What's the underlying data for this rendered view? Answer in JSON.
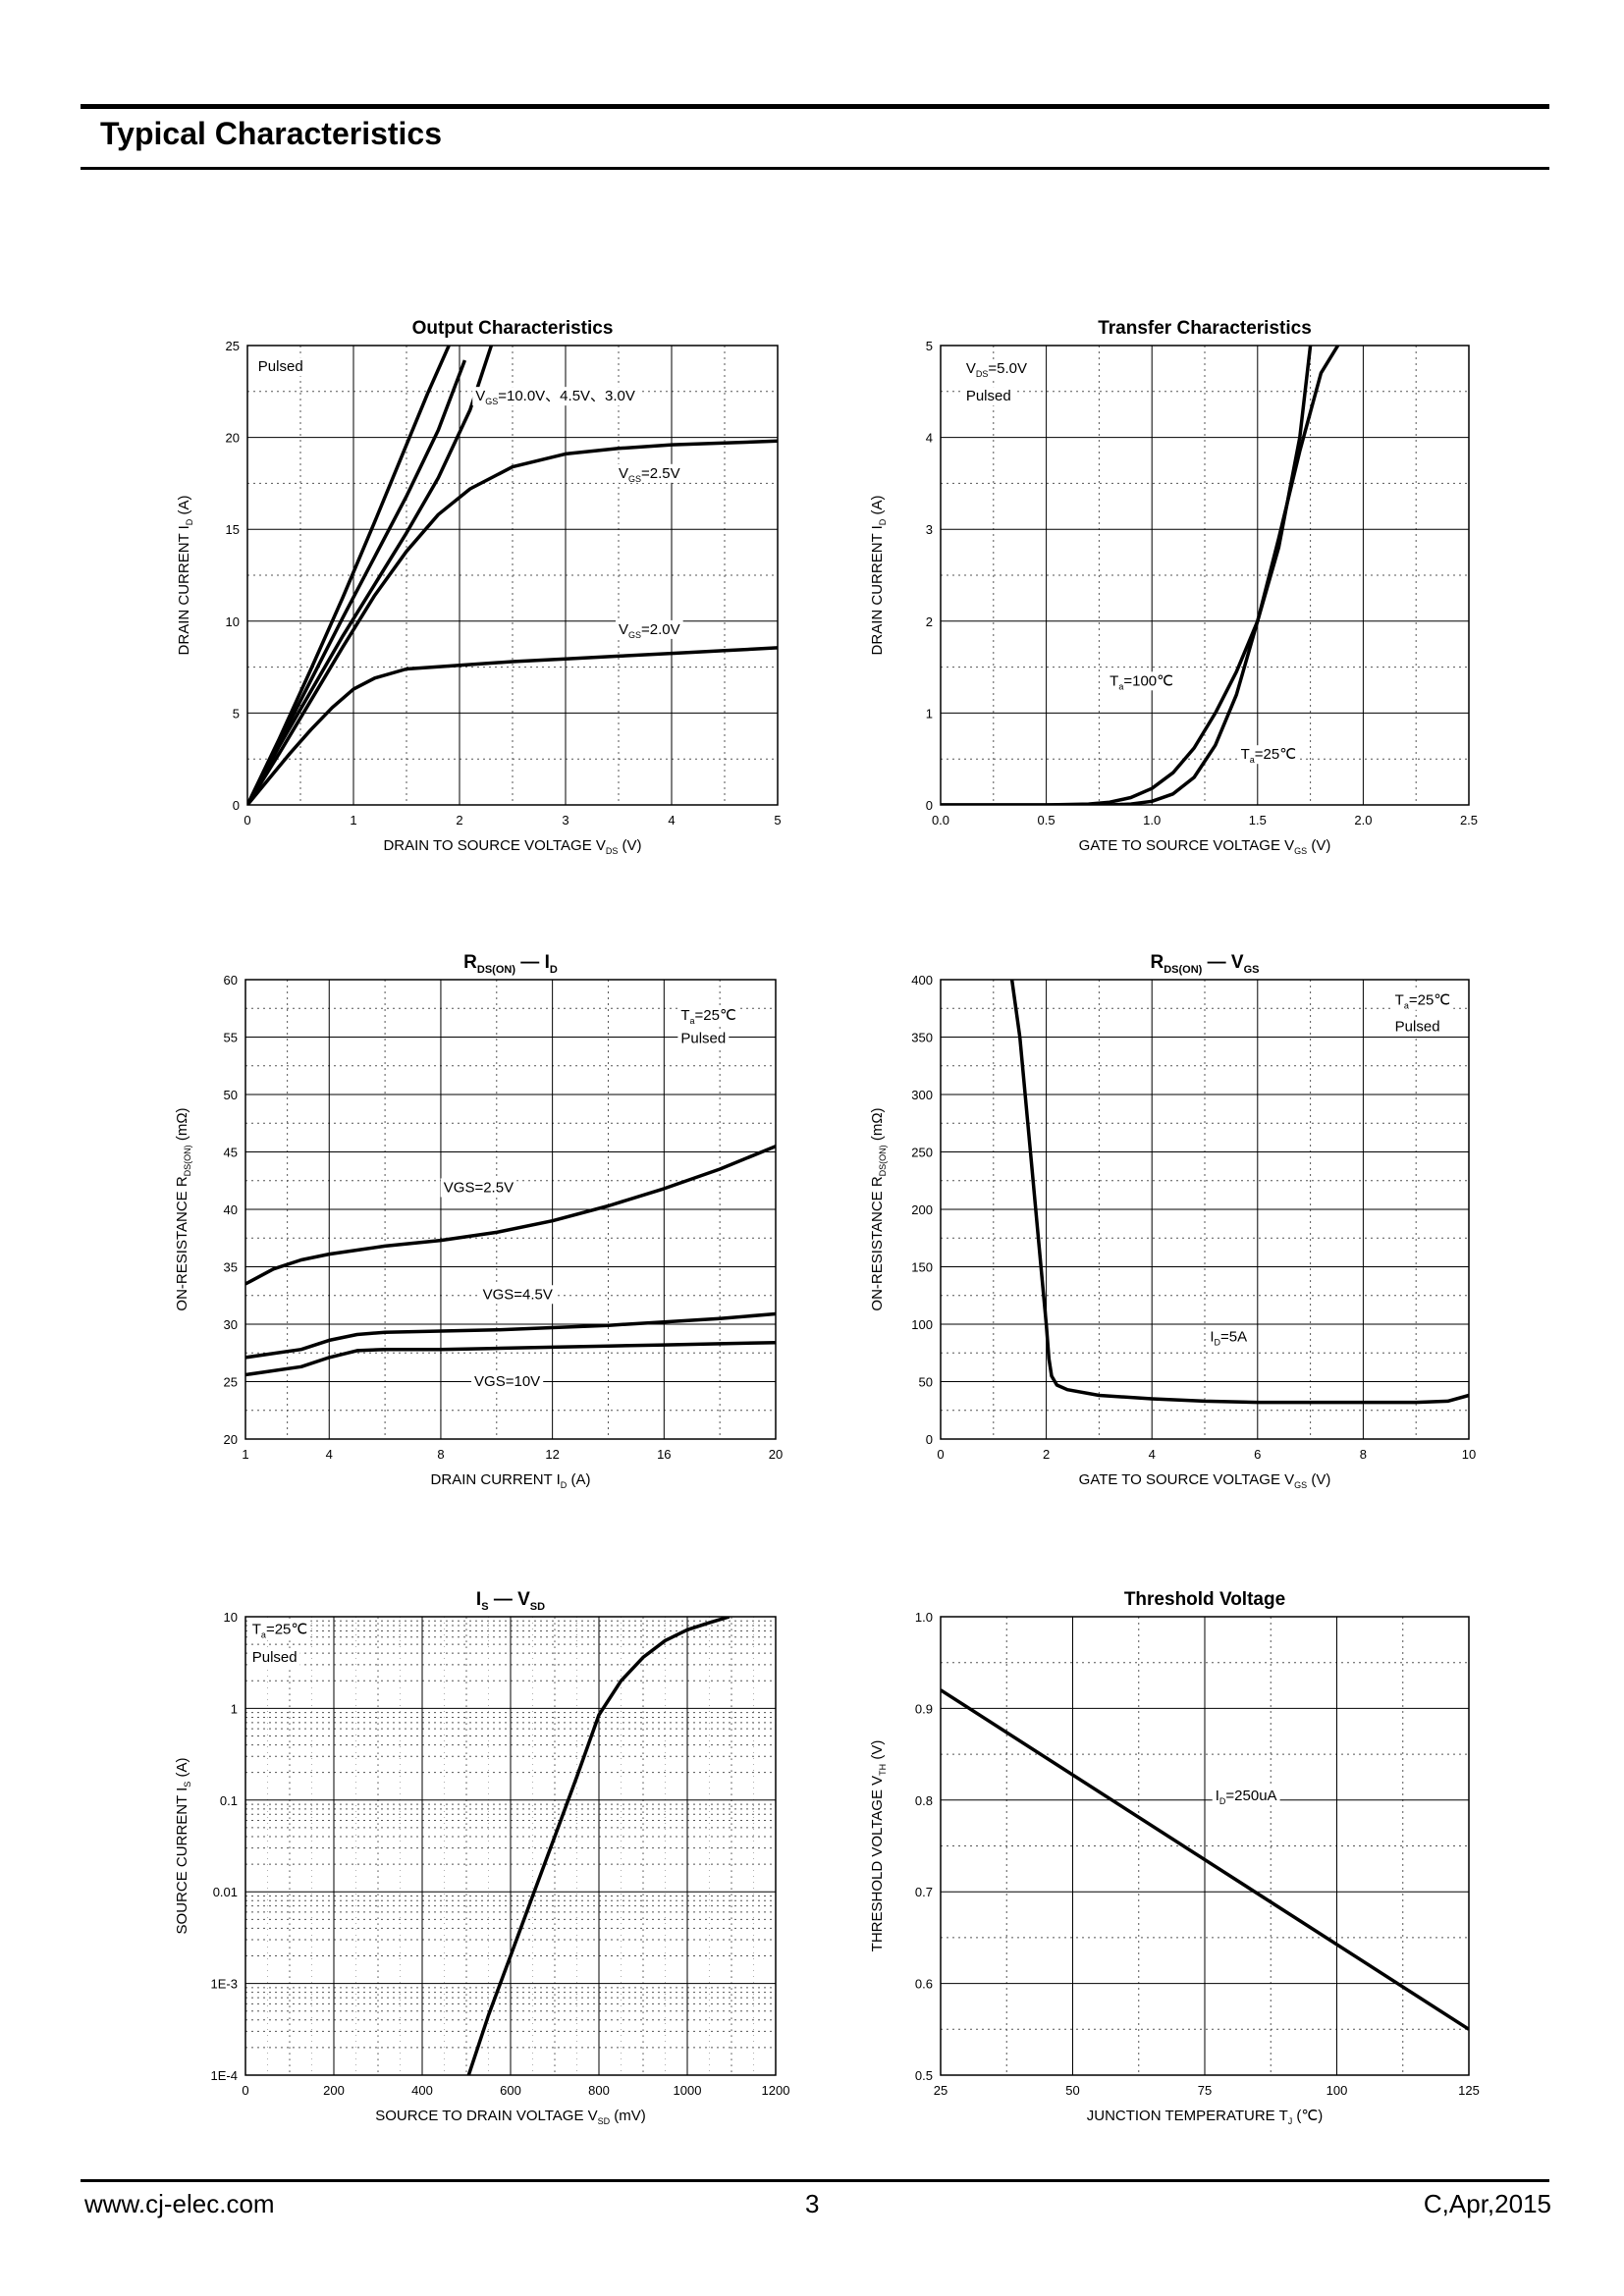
{
  "header": {
    "title": "Typical Characteristics"
  },
  "footer": {
    "website": "www.cj-elec.com",
    "page": "3",
    "revision": "C,Apr,2015"
  },
  "chart_data": [
    {
      "id": "output",
      "type": "line",
      "title": "Output Characteristics",
      "xlabel": "DRAIN TO SOURCE VOLTAGE   V_DS   (V)",
      "ylabel": "DRAIN CURRENT   I_D   (A)",
      "xlim": [
        0,
        5
      ],
      "ylim": [
        0,
        25
      ],
      "xticks": [
        0,
        1,
        2,
        3,
        4,
        5
      ],
      "yticks": [
        0,
        5,
        10,
        15,
        20,
        25
      ],
      "xticklabels": [
        "0",
        "1",
        "2",
        "3",
        "4",
        "5"
      ],
      "yticklabels": [
        "0",
        "5",
        "10",
        "15",
        "20",
        "25"
      ],
      "annotations": [
        {
          "text": "Pulsed",
          "x": 0.1,
          "y": 23.6
        },
        {
          "text": "V_GS=10.0V、4.5V、3.0V",
          "x": 2.15,
          "y": 22.0
        },
        {
          "text": "V_GS=2.5V",
          "x": 3.5,
          "y": 17.8
        },
        {
          "text": "V_GS=2.0V",
          "x": 3.5,
          "y": 9.3
        }
      ],
      "series": [
        {
          "name": "VGS=10.0V",
          "x": [
            0,
            0.3,
            0.6,
            0.9,
            1.2,
            1.5,
            1.7,
            1.9
          ],
          "y": [
            0,
            3.6,
            7.4,
            11.3,
            15.4,
            19.6,
            22.4,
            25
          ]
        },
        {
          "name": "VGS=4.5V",
          "x": [
            0,
            0.3,
            0.6,
            0.9,
            1.2,
            1.5,
            1.8,
            2.05
          ],
          "y": [
            0,
            3.4,
            6.8,
            10.2,
            13.5,
            16.8,
            20.4,
            24.2
          ]
        },
        {
          "name": "VGS=3.0V",
          "x": [
            0,
            0.3,
            0.6,
            0.9,
            1.2,
            1.5,
            1.8,
            2.1,
            2.3
          ],
          "y": [
            0,
            3.2,
            6.2,
            9.2,
            12.0,
            14.8,
            17.8,
            21.5,
            25
          ]
        },
        {
          "name": "VGS=2.5V",
          "x": [
            0,
            0.3,
            0.6,
            0.9,
            1.2,
            1.5,
            1.8,
            2.1,
            2.5,
            3.0,
            3.5,
            4.0,
            4.5,
            5.0
          ],
          "y": [
            0,
            2.8,
            5.7,
            8.6,
            11.4,
            13.8,
            15.8,
            17.2,
            18.4,
            19.1,
            19.4,
            19.6,
            19.7,
            19.8
          ]
        },
        {
          "name": "VGS=2.0V",
          "x": [
            0,
            0.2,
            0.4,
            0.6,
            0.8,
            1.0,
            1.2,
            1.5,
            2.0,
            2.5,
            3.0,
            3.5,
            4.0,
            4.5,
            5.0
          ],
          "y": [
            0,
            1.4,
            2.8,
            4.1,
            5.3,
            6.3,
            6.9,
            7.4,
            7.6,
            7.8,
            7.95,
            8.1,
            8.25,
            8.4,
            8.55
          ]
        }
      ]
    },
    {
      "id": "transfer",
      "type": "line",
      "title": "Transfer Characteristics",
      "xlabel": "GATE TO SOURCE VOLTAGE   V_GS   (V)",
      "ylabel": "DRAIN CURRENT   I_D   (A)",
      "xlim": [
        0,
        2.5
      ],
      "ylim": [
        0,
        5
      ],
      "xticks": [
        0,
        0.5,
        1.0,
        1.5,
        2.0,
        2.5
      ],
      "yticks": [
        0,
        1,
        2,
        3,
        4,
        5
      ],
      "xticklabels": [
        "0.0",
        "0.5",
        "1.0",
        "1.5",
        "2.0",
        "2.5"
      ],
      "yticklabels": [
        "0",
        "1",
        "2",
        "3",
        "4",
        "5"
      ],
      "annotations": [
        {
          "text": "V_DS=5.0V",
          "x": 0.12,
          "y": 4.7
        },
        {
          "text": "Pulsed",
          "x": 0.12,
          "y": 4.4
        },
        {
          "text": "T_a=100℃",
          "x": 0.8,
          "y": 1.3
        },
        {
          "text": "T_a=25℃",
          "x": 1.42,
          "y": 0.5
        }
      ],
      "series": [
        {
          "name": "Ta=100C",
          "x": [
            0,
            0.5,
            0.7,
            0.8,
            0.9,
            1.0,
            1.1,
            1.2,
            1.3,
            1.4,
            1.5,
            1.6,
            1.7,
            1.75
          ],
          "y": [
            0,
            0.0,
            0.01,
            0.03,
            0.08,
            0.18,
            0.35,
            0.62,
            1.0,
            1.45,
            2.0,
            2.8,
            4.0,
            5.0
          ]
        },
        {
          "name": "Ta=25C",
          "x": [
            0,
            0.5,
            0.8,
            0.9,
            1.0,
            1.1,
            1.2,
            1.3,
            1.4,
            1.5,
            1.6,
            1.7,
            1.8,
            1.88
          ],
          "y": [
            0,
            0.0,
            0.0,
            0.01,
            0.04,
            0.12,
            0.3,
            0.65,
            1.2,
            2.0,
            2.9,
            3.85,
            4.7,
            5.0
          ]
        }
      ]
    },
    {
      "id": "rds-id",
      "type": "line",
      "title": "R_DS(ON)  —  I_D",
      "xlabel": "DRAIN CURRENT   I_D   (A)",
      "ylabel": "ON-RESISTANCE   R_DS(ON)   (mΩ)",
      "xlim": [
        1,
        20
      ],
      "ylim": [
        20,
        60
      ],
      "xticks": [
        1,
        4,
        8,
        12,
        16,
        20
      ],
      "yticks": [
        20,
        25,
        30,
        35,
        40,
        45,
        50,
        55,
        60
      ],
      "xticklabels": [
        "1",
        "4",
        "8",
        "12",
        "16",
        "20"
      ],
      "yticklabels": [
        "20",
        "25",
        "30",
        "35",
        "40",
        "45",
        "50",
        "55",
        "60"
      ],
      "annotations": [
        {
          "text": "T_a=25℃",
          "x": 16.6,
          "y": 56.5
        },
        {
          "text": "Pulsed",
          "x": 16.6,
          "y": 54.5
        },
        {
          "text": "VGS=2.5V",
          "x": 8.1,
          "y": 41.5
        },
        {
          "text": "VGS=4.5V",
          "x": 9.5,
          "y": 32.2
        },
        {
          "text": "VGS=10V",
          "x": 9.2,
          "y": 24.6
        }
      ],
      "series": [
        {
          "name": "VGS=2.5V",
          "x": [
            1,
            2,
            3,
            4,
            6,
            8,
            10,
            12,
            14,
            16,
            18,
            20
          ],
          "y": [
            33.5,
            34.8,
            35.6,
            36.1,
            36.8,
            37.3,
            38.0,
            39.0,
            40.3,
            41.8,
            43.5,
            45.5
          ]
        },
        {
          "name": "VGS=4.5V",
          "x": [
            1,
            3,
            4,
            5,
            6,
            8,
            10,
            12,
            14,
            16,
            18,
            20
          ],
          "y": [
            27.1,
            27.8,
            28.6,
            29.1,
            29.3,
            29.4,
            29.5,
            29.7,
            29.9,
            30.2,
            30.5,
            30.9
          ]
        },
        {
          "name": "VGS=10V",
          "x": [
            1,
            3,
            4,
            5,
            6,
            8,
            10,
            12,
            14,
            16,
            18,
            20
          ],
          "y": [
            25.6,
            26.3,
            27.1,
            27.7,
            27.8,
            27.8,
            27.9,
            28.0,
            28.1,
            28.2,
            28.3,
            28.4
          ]
        }
      ]
    },
    {
      "id": "rds-vgs",
      "type": "line",
      "title": "R_DS(ON)  —  V_GS",
      "xlabel": "GATE TO SOURCE VOLTAGE   V_GS   (V)",
      "ylabel": "ON-RESISTANCE   R_DS(ON)   (mΩ)",
      "xlim": [
        0,
        10
      ],
      "ylim": [
        0,
        400
      ],
      "xticks": [
        0,
        2,
        4,
        6,
        8,
        10
      ],
      "yticks": [
        0,
        50,
        100,
        150,
        200,
        250,
        300,
        350,
        400
      ],
      "xticklabels": [
        "0",
        "2",
        "4",
        "6",
        "8",
        "10"
      ],
      "yticklabels": [
        "0",
        "50",
        "100",
        "150",
        "200",
        "250",
        "300",
        "350",
        "400"
      ],
      "annotations": [
        {
          "text": "T_a=25℃",
          "x": 8.6,
          "y": 378
        },
        {
          "text": "Pulsed",
          "x": 8.6,
          "y": 355
        },
        {
          "text": "I_D=5A",
          "x": 5.1,
          "y": 85
        }
      ],
      "series": [
        {
          "name": "ID=5A",
          "x": [
            1.35,
            1.5,
            1.7,
            1.9,
            2.0,
            2.05,
            2.1,
            2.2,
            2.4,
            3,
            4,
            5,
            6,
            7,
            8,
            9,
            9.6,
            10
          ],
          "y": [
            400,
            350,
            250,
            150,
            100,
            70,
            55,
            47,
            43,
            38,
            35,
            33,
            32,
            32,
            32,
            32,
            33,
            38
          ]
        }
      ]
    },
    {
      "id": "is-vsd",
      "type": "line",
      "title": "I_S  —  V_SD",
      "xlabel": "SOURCE TO DRAIN VOLTAGE   V_SD   (mV)",
      "ylabel": "SOURCE CURRENT   I_S   (A)",
      "xlim": [
        0,
        1200
      ],
      "ylim": [
        0.0001,
        10
      ],
      "yscale": "log",
      "xticks": [
        0,
        200,
        400,
        600,
        800,
        1000,
        1200
      ],
      "yticks": [
        0.0001,
        0.001,
        0.01,
        0.1,
        1,
        10
      ],
      "xticklabels": [
        "0",
        "200",
        "400",
        "600",
        "800",
        "1000",
        "1200"
      ],
      "yticklabels": [
        "1E-4",
        "1E-3",
        "0.01",
        "0.1",
        "1",
        "10"
      ],
      "annotations": [
        {
          "text": "T_a=25℃",
          "x": 15,
          "y": 6.5
        },
        {
          "text": "Pulsed",
          "x": 15,
          "y": 3.2
        }
      ],
      "series": [
        {
          "name": "Ta=25C",
          "x": [
            505,
            550,
            600,
            650,
            700,
            750,
            800,
            850,
            900,
            950,
            1000,
            1050,
            1095
          ],
          "y": [
            0.0001,
            0.00045,
            0.002,
            0.009,
            0.04,
            0.18,
            0.85,
            2.0,
            3.6,
            5.5,
            7.2,
            8.6,
            10
          ]
        }
      ]
    },
    {
      "id": "threshold",
      "type": "line",
      "title": "Threshold Voltage",
      "xlabel": "JUNCTION TEMPERATURE   T_J   (℃)",
      "ylabel": "THRESHOLD VOLTAGE   V_TH   (V)",
      "xlim": [
        25,
        125
      ],
      "ylim": [
        0.5,
        1.0
      ],
      "xticks": [
        25,
        50,
        75,
        100,
        125
      ],
      "yticks": [
        0.5,
        0.6,
        0.7,
        0.8,
        0.9,
        1.0
      ],
      "xticklabels": [
        "25",
        "50",
        "75",
        "100",
        "125"
      ],
      "yticklabels": [
        "0.5",
        "0.6",
        "0.7",
        "0.8",
        "0.9",
        "1.0"
      ],
      "annotations": [
        {
          "text": "I_D=250uA",
          "x": 77,
          "y": 0.8
        }
      ],
      "series": [
        {
          "name": "ID=250uA",
          "x": [
            25,
            125
          ],
          "y": [
            0.92,
            0.55
          ]
        }
      ]
    }
  ]
}
